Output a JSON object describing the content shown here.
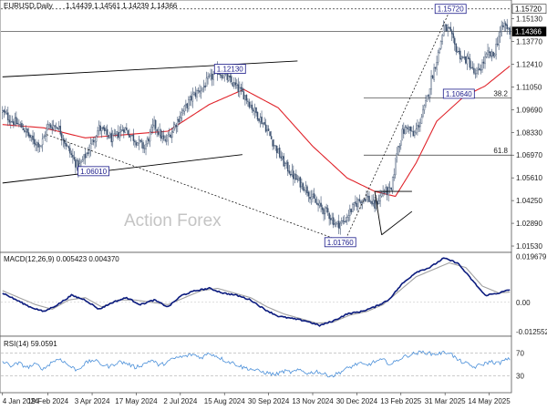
{
  "header": {
    "instrument": "EURUSD,Daily",
    "ohlc": "1.14439 1.14561 1.14239 1.14366"
  },
  "watermark": "Action Forex",
  "colors": {
    "candle": "#3a4f6e",
    "ma": "#e0242b",
    "macd_line": "#0b1b7e",
    "macd_signal": "#a0a0a0",
    "rsi": "#4a8fd9",
    "trendline": "#000000",
    "box_border": "#1a1a8a",
    "current_price_bg": "#000000"
  },
  "chart_data": [
    {
      "type": "candlestick",
      "title": "EURUSD,Daily",
      "ylim": [
        1.0115,
        1.1625
      ],
      "y_ticks": [
        "1.15130",
        "1.13770",
        "1.12410",
        "1.11050",
        "1.09690",
        "1.08330",
        "1.06970",
        "1.05610",
        "1.04250",
        "1.02890",
        "1.01530"
      ],
      "x_ticks": [
        "4 Jan 2024",
        "19 Feb 2024",
        "3 Apr 2024",
        "17 May 2024",
        "2 Jul 2024",
        "15 Aug 2024",
        "30 Sep 2024",
        "13 Nov 2024",
        "30 Dec 2024",
        "13 Feb 2025",
        "31 Mar 2025",
        "14 May 2025"
      ],
      "price_label_current": "1.14366",
      "price_label_high": "1.15720",
      "anchors": [
        [
          0,
          1.0955
        ],
        [
          5,
          1.0915
        ],
        [
          15,
          1.086
        ],
        [
          22,
          1.078
        ],
        [
          28,
          1.076
        ],
        [
          33,
          1.087
        ],
        [
          40,
          1.0875
        ],
        [
          48,
          1.0725
        ],
        [
          55,
          1.062
        ],
        [
          62,
          1.072
        ],
        [
          70,
          1.086
        ],
        [
          80,
          1.079
        ],
        [
          88,
          1.086
        ],
        [
          96,
          1.079
        ],
        [
          103,
          1.074
        ],
        [
          110,
          1.088
        ],
        [
          118,
          1.077
        ],
        [
          128,
          1.092
        ],
        [
          138,
          1.105
        ],
        [
          145,
          1.11
        ],
        [
          150,
          1.115
        ],
        [
          156,
          1.12
        ],
        [
          164,
          1.115
        ],
        [
          170,
          1.11
        ],
        [
          176,
          1.105
        ],
        [
          182,
          1.097
        ],
        [
          190,
          1.088
        ],
        [
          197,
          1.076
        ],
        [
          204,
          1.065
        ],
        [
          212,
          1.056
        ],
        [
          220,
          1.05
        ],
        [
          228,
          1.04
        ],
        [
          236,
          1.035
        ],
        [
          242,
          1.028
        ],
        [
          248,
          1.03
        ],
        [
          252,
          1.036
        ],
        [
          258,
          1.042
        ],
        [
          264,
          1.045
        ],
        [
          270,
          1.039
        ],
        [
          276,
          1.048
        ],
        [
          282,
          1.048
        ],
        [
          286,
          1.072
        ],
        [
          290,
          1.083
        ],
        [
          294,
          1.087
        ],
        [
          298,
          1.081
        ],
        [
          303,
          1.09
        ],
        [
          307,
          1.1
        ],
        [
          311,
          1.115
        ],
        [
          316,
          1.13
        ],
        [
          320,
          1.146
        ],
        [
          324,
          1.144
        ],
        [
          328,
          1.135
        ],
        [
          333,
          1.128
        ],
        [
          338,
          1.126
        ],
        [
          343,
          1.117
        ],
        [
          348,
          1.124
        ],
        [
          352,
          1.13
        ],
        [
          356,
          1.129
        ],
        [
          360,
          1.141
        ],
        [
          364,
          1.148
        ],
        [
          368,
          1.1437
        ]
      ],
      "moving_average": [
        [
          0,
          1.088
        ],
        [
          30,
          1.086
        ],
        [
          60,
          1.08
        ],
        [
          90,
          1.082
        ],
        [
          120,
          1.084
        ],
        [
          150,
          1.1
        ],
        [
          175,
          1.109
        ],
        [
          200,
          1.098
        ],
        [
          225,
          1.075
        ],
        [
          250,
          1.056
        ],
        [
          270,
          1.048
        ],
        [
          285,
          1.045
        ],
        [
          300,
          1.065
        ],
        [
          315,
          1.09
        ],
        [
          335,
          1.105
        ],
        [
          350,
          1.111
        ],
        [
          368,
          1.123
        ]
      ],
      "annotations": [
        {
          "label": "1.06010",
          "i": 66,
          "price": 1.0601
        },
        {
          "label": "1.12130",
          "i": 165,
          "price": 1.1213
        },
        {
          "label": "1.01760",
          "i": 245,
          "price": 1.0176
        },
        {
          "label": "1.15720",
          "i": 325,
          "price": 1.1572
        },
        {
          "label": "1.10640",
          "i": 331,
          "price": 1.1064
        }
      ],
      "fib_levels": [
        {
          "label": "38.2",
          "price": 1.104
        },
        {
          "label": "61.8",
          "price": 1.0697
        }
      ],
      "trendlines": [
        {
          "from": [
            0,
            1.1165
          ],
          "to": [
            214,
            1.126
          ],
          "style": "solid"
        },
        {
          "from": [
            0,
            1.053
          ],
          "to": [
            174,
            1.07
          ],
          "style": "solid"
        },
        {
          "from": [
            32,
            1.082
          ],
          "to": [
            248,
            1.0176
          ],
          "style": "dotted"
        },
        {
          "from": [
            248,
            1.0176
          ],
          "to": [
            325,
            1.1572
          ],
          "style": "dotted"
        },
        {
          "from": [
            270,
            1.048
          ],
          "to": [
            297,
            1.048
          ],
          "style": "solid"
        },
        {
          "from": [
            270,
            1.048
          ],
          "to": [
            275,
            1.022
          ],
          "style": "solid"
        },
        {
          "from": [
            275,
            1.022
          ],
          "to": [
            297,
            1.036
          ],
          "style": "solid"
        }
      ],
      "horizontal_lines": [
        {
          "price": 1.1572,
          "style": "dotted"
        },
        {
          "price": 1.14366,
          "style": "solid"
        }
      ]
    },
    {
      "type": "line",
      "title": "MACD(12,26,9) 0.005423 0.004370",
      "ylim": [
        -0.0146,
        0.0215
      ],
      "y_ticks": [
        "0.019679",
        "0.00",
        "-0.012552"
      ],
      "series": [
        {
          "name": "MACD",
          "values": [
            [
              0,
              0.004
            ],
            [
              10,
              0.001
            ],
            [
              20,
              -0.002
            ],
            [
              30,
              -0.004
            ],
            [
              40,
              -0.001
            ],
            [
              50,
              0.003
            ],
            [
              60,
              0.001
            ],
            [
              70,
              -0.003
            ],
            [
              80,
              0.0
            ],
            [
              90,
              0.002
            ],
            [
              100,
              -0.001
            ],
            [
              110,
              0.001
            ],
            [
              120,
              -0.002
            ],
            [
              130,
              0.003
            ],
            [
              140,
              0.005
            ],
            [
              150,
              0.006
            ],
            [
              160,
              0.004
            ],
            [
              170,
              0.003
            ],
            [
              180,
              0.001
            ],
            [
              190,
              -0.003
            ],
            [
              200,
              -0.006
            ],
            [
              210,
              -0.007
            ],
            [
              220,
              -0.008
            ],
            [
              230,
              -0.01
            ],
            [
              240,
              -0.008
            ],
            [
              250,
              -0.005
            ],
            [
              260,
              -0.004
            ],
            [
              270,
              -0.002
            ],
            [
              280,
              0.001
            ],
            [
              290,
              0.008
            ],
            [
              300,
              0.013
            ],
            [
              310,
              0.015
            ],
            [
              320,
              0.019
            ],
            [
              330,
              0.017
            ],
            [
              340,
              0.01
            ],
            [
              350,
              0.003
            ],
            [
              360,
              0.004
            ],
            [
              368,
              0.0054
            ]
          ]
        },
        {
          "name": "Signal",
          "values": [
            [
              0,
              0.005
            ],
            [
              12,
              0.002
            ],
            [
              24,
              -0.001
            ],
            [
              36,
              -0.003
            ],
            [
              48,
              0.001
            ],
            [
              60,
              0.002
            ],
            [
              72,
              -0.002
            ],
            [
              84,
              0.001
            ],
            [
              96,
              0.001
            ],
            [
              108,
              0.0
            ],
            [
              120,
              -0.001
            ],
            [
              132,
              0.002
            ],
            [
              144,
              0.005
            ],
            [
              156,
              0.006
            ],
            [
              168,
              0.004
            ],
            [
              180,
              0.002
            ],
            [
              192,
              -0.002
            ],
            [
              204,
              -0.005
            ],
            [
              216,
              -0.007
            ],
            [
              228,
              -0.009
            ],
            [
              240,
              -0.0085
            ],
            [
              252,
              -0.0055
            ],
            [
              264,
              -0.004
            ],
            [
              276,
              -0.001
            ],
            [
              288,
              0.005
            ],
            [
              300,
              0.011
            ],
            [
              312,
              0.014
            ],
            [
              324,
              0.017
            ],
            [
              336,
              0.015
            ],
            [
              348,
              0.007
            ],
            [
              360,
              0.004
            ],
            [
              368,
              0.0044
            ]
          ]
        }
      ]
    },
    {
      "type": "line",
      "title": "RSI(14) 59.0591",
      "ylim": [
        0,
        100
      ],
      "y_ticks": [
        "70",
        "30"
      ],
      "guide_levels": [
        70,
        30
      ],
      "series": [
        {
          "name": "RSI",
          "values": [
            [
              0,
              55
            ],
            [
              6,
              48
            ],
            [
              12,
              52
            ],
            [
              18,
              45
            ],
            [
              24,
              50
            ],
            [
              30,
              42
            ],
            [
              36,
              55
            ],
            [
              42,
              60
            ],
            [
              48,
              48
            ],
            [
              54,
              40
            ],
            [
              60,
              52
            ],
            [
              66,
              58
            ],
            [
              72,
              50
            ],
            [
              78,
              46
            ],
            [
              84,
              55
            ],
            [
              90,
              52
            ],
            [
              96,
              45
            ],
            [
              102,
              50
            ],
            [
              108,
              58
            ],
            [
              114,
              48
            ],
            [
              120,
              55
            ],
            [
              126,
              62
            ],
            [
              132,
              64
            ],
            [
              138,
              68
            ],
            [
              144,
              62
            ],
            [
              150,
              70
            ],
            [
              156,
              64
            ],
            [
              162,
              56
            ],
            [
              168,
              52
            ],
            [
              174,
              45
            ],
            [
              180,
              42
            ],
            [
              186,
              38
            ],
            [
              192,
              35
            ],
            [
              198,
              32
            ],
            [
              204,
              38
            ],
            [
              210,
              36
            ],
            [
              216,
              40
            ],
            [
              222,
              34
            ],
            [
              228,
              38
            ],
            [
              234,
              32
            ],
            [
              240,
              30
            ],
            [
              246,
              38
            ],
            [
              252,
              45
            ],
            [
              258,
              52
            ],
            [
              264,
              48
            ],
            [
              270,
              55
            ],
            [
              276,
              58
            ],
            [
              282,
              50
            ],
            [
              288,
              60
            ],
            [
              294,
              66
            ],
            [
              300,
              70
            ],
            [
              306,
              72
            ],
            [
              312,
              68
            ],
            [
              318,
              70
            ],
            [
              324,
              72
            ],
            [
              330,
              58
            ],
            [
              336,
              52
            ],
            [
              342,
              45
            ],
            [
              348,
              50
            ],
            [
              354,
              55
            ],
            [
              360,
              52
            ],
            [
              365,
              58
            ],
            [
              368,
              59.06
            ]
          ]
        }
      ]
    }
  ]
}
